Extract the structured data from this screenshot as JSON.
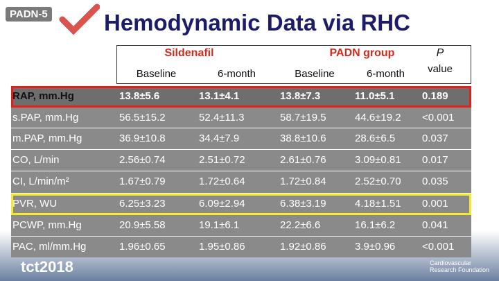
{
  "header": {
    "badge": "PADN-5",
    "title": "Hemodynamic Data via RHC"
  },
  "table": {
    "groups": [
      "Sildenafil",
      "PADN group"
    ],
    "p_label": "P",
    "p_label2": "value",
    "subheaders": [
      "Baseline",
      "6-month",
      "Baseline",
      "6-month"
    ],
    "rows": [
      [
        "RAP, mm.Hg",
        "13.8±5.6",
        "13.1±4.1",
        "13.8±7.3",
        "11.0±5.1",
        "0.189"
      ],
      [
        "s.PAP, mm.Hg",
        "56.5±15.2",
        "52.4±11.3",
        "58.7±19.5",
        "44.6±19.2",
        "<0.001"
      ],
      [
        "m.PAP, mm.Hg",
        "36.9±10.8",
        "34.4±7.9",
        "38.8±10.6",
        "28.6±6.5",
        "0.037"
      ],
      [
        "CO, L/min",
        "2.56±0.74",
        "2.51±0.72",
        "2.61±0.76",
        "3.09±0.81",
        "0.017"
      ],
      [
        "CI, L/min/m²",
        "1.67±0.79",
        "1.72±0.64",
        "1.72±0.84",
        "2.52±0.70",
        "0.035"
      ],
      [
        "PVR, WU",
        "6.25±3.23",
        "6.09±2.94",
        "6.38±3.19",
        "4.18±1.51",
        "0.001"
      ],
      [
        "PCWP, mm.Hg",
        "20.9±5.58",
        "19.1±6.1",
        "22.2±6.6",
        "16.1±6.2",
        "0.041"
      ],
      [
        "PAC, ml/mm.Hg",
        "1.96±0.65",
        "1.95±0.86",
        "1.92±0.86",
        "3.9±0.96",
        "<0.001"
      ]
    ]
  },
  "footer": {
    "logo": "tct2018",
    "sponsor": "Cardiovascular Research Foundation"
  }
}
